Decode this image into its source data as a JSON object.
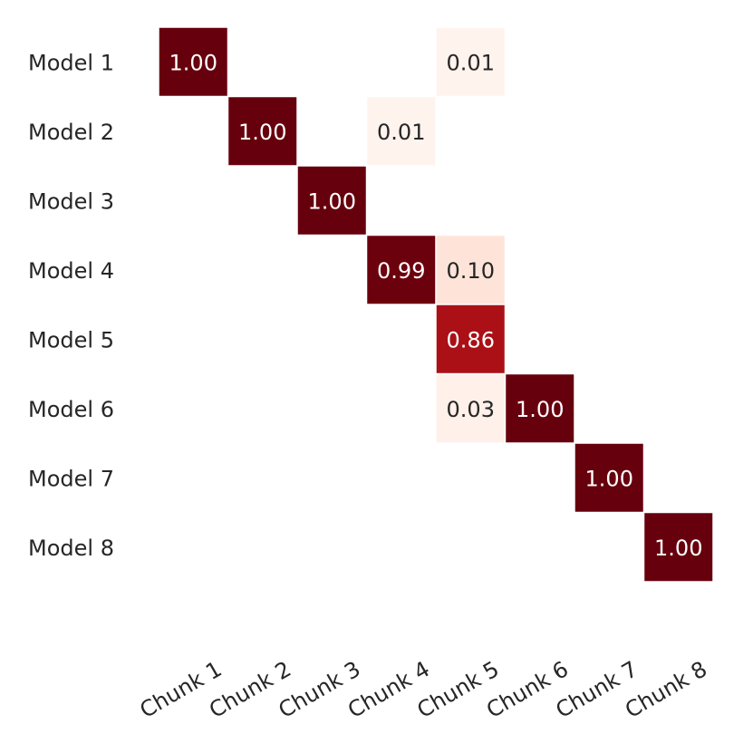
{
  "chart_data": {
    "type": "heatmap",
    "rows": [
      "Model 1",
      "Model 2",
      "Model 3",
      "Model 4",
      "Model 5",
      "Model 6",
      "Model 7",
      "Model 8"
    ],
    "columns": [
      "Chunk 1",
      "Chunk 2",
      "Chunk 3",
      "Chunk 4",
      "Chunk 5",
      "Chunk 6",
      "Chunk 7",
      "Chunk 8"
    ],
    "cells": [
      {
        "row": 0,
        "col": 0,
        "value": 1.0,
        "label": "1.00"
      },
      {
        "row": 0,
        "col": 4,
        "value": 0.01,
        "label": "0.01"
      },
      {
        "row": 1,
        "col": 1,
        "value": 1.0,
        "label": "1.00"
      },
      {
        "row": 1,
        "col": 3,
        "value": 0.01,
        "label": "0.01"
      },
      {
        "row": 2,
        "col": 2,
        "value": 1.0,
        "label": "1.00"
      },
      {
        "row": 3,
        "col": 3,
        "value": 0.99,
        "label": "0.99"
      },
      {
        "row": 3,
        "col": 4,
        "value": 0.1,
        "label": "0.10"
      },
      {
        "row": 4,
        "col": 4,
        "value": 0.86,
        "label": "0.86"
      },
      {
        "row": 5,
        "col": 4,
        "value": 0.03,
        "label": "0.03"
      },
      {
        "row": 5,
        "col": 5,
        "value": 1.0,
        "label": "1.00"
      },
      {
        "row": 6,
        "col": 6,
        "value": 1.0,
        "label": "1.00"
      },
      {
        "row": 7,
        "col": 7,
        "value": 1.0,
        "label": "1.00"
      }
    ],
    "value_range": [
      0,
      1
    ],
    "colormap": "Reds",
    "grid": false,
    "colorbar": false
  }
}
